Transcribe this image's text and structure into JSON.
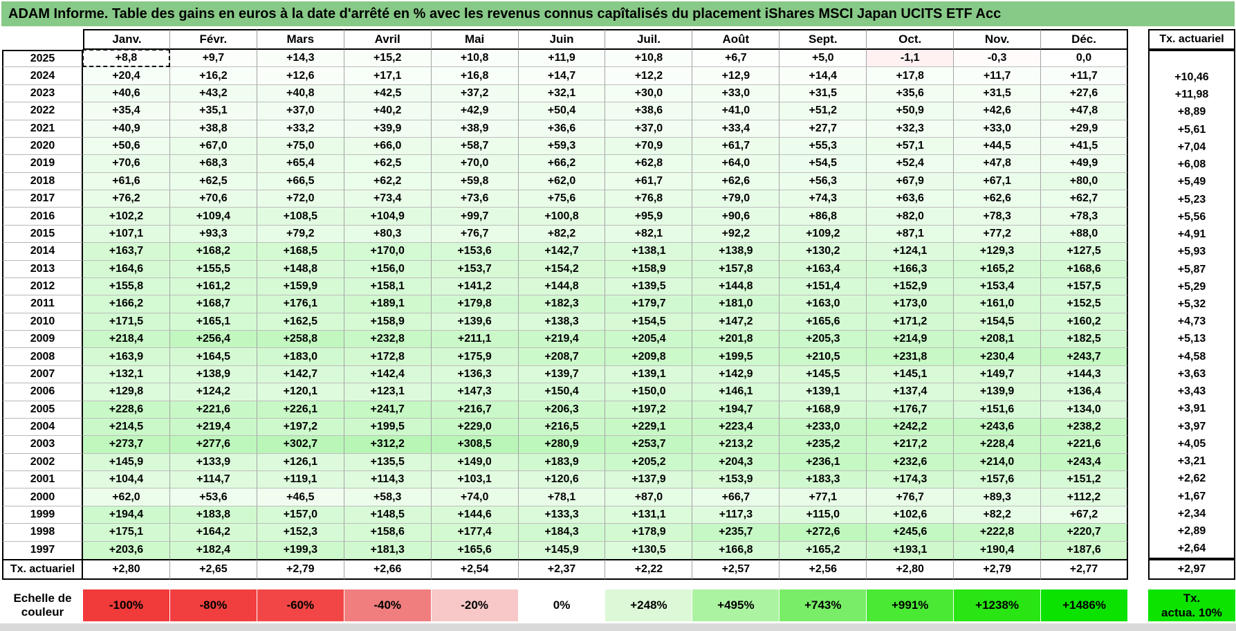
{
  "title": "ADAM Informe. Table des gains en euros à la date d'arrêté en % avec les revenus connus capîtalisés du placement iShares MSCI Japan UCITS ETF Acc",
  "columns": [
    "Janv.",
    "Févr.",
    "Mars",
    "Avril",
    "Mai",
    "Juin",
    "Juil.",
    "Août",
    "Sept.",
    "Oct.",
    "Nov.",
    "Déc."
  ],
  "right_column_header": "Tx. actuariel",
  "rows": [
    {
      "year": "2025",
      "values": [
        "+8,8",
        "+9,7",
        "+14,3",
        "+15,2",
        "+10,8",
        "+11,9",
        "+10,8",
        "+6,7",
        "+5,0",
        "-1,1",
        "-0,3",
        "0,0"
      ],
      "tx": ""
    },
    {
      "year": "2024",
      "values": [
        "+20,4",
        "+16,2",
        "+12,6",
        "+17,1",
        "+16,8",
        "+14,7",
        "+12,2",
        "+12,9",
        "+14,4",
        "+17,8",
        "+11,7",
        "+11,7"
      ],
      "tx": "+10,46"
    },
    {
      "year": "2023",
      "values": [
        "+40,6",
        "+43,2",
        "+40,8",
        "+42,5",
        "+37,2",
        "+32,1",
        "+30,0",
        "+33,0",
        "+31,5",
        "+35,6",
        "+31,5",
        "+27,6"
      ],
      "tx": "+11,98"
    },
    {
      "year": "2022",
      "values": [
        "+35,4",
        "+35,1",
        "+37,0",
        "+40,2",
        "+42,9",
        "+50,4",
        "+38,6",
        "+41,0",
        "+51,2",
        "+50,9",
        "+42,6",
        "+47,8"
      ],
      "tx": "+8,89"
    },
    {
      "year": "2021",
      "values": [
        "+40,9",
        "+38,8",
        "+33,2",
        "+39,9",
        "+38,9",
        "+36,6",
        "+37,0",
        "+33,4",
        "+27,7",
        "+32,3",
        "+33,0",
        "+29,9"
      ],
      "tx": "+5,61"
    },
    {
      "year": "2020",
      "values": [
        "+50,6",
        "+67,0",
        "+75,0",
        "+66,0",
        "+58,7",
        "+59,3",
        "+70,9",
        "+61,7",
        "+55,3",
        "+57,1",
        "+44,5",
        "+41,5"
      ],
      "tx": "+7,04"
    },
    {
      "year": "2019",
      "values": [
        "+70,6",
        "+68,3",
        "+65,4",
        "+62,5",
        "+70,0",
        "+66,2",
        "+62,8",
        "+64,0",
        "+54,5",
        "+52,4",
        "+47,8",
        "+49,9"
      ],
      "tx": "+6,08"
    },
    {
      "year": "2018",
      "values": [
        "+61,6",
        "+62,5",
        "+66,5",
        "+62,2",
        "+59,8",
        "+62,0",
        "+61,7",
        "+62,6",
        "+56,3",
        "+67,9",
        "+67,1",
        "+80,0"
      ],
      "tx": "+5,49"
    },
    {
      "year": "2017",
      "values": [
        "+76,2",
        "+70,6",
        "+72,0",
        "+73,4",
        "+73,6",
        "+75,6",
        "+76,8",
        "+79,0",
        "+74,3",
        "+63,6",
        "+62,6",
        "+62,7"
      ],
      "tx": "+5,23"
    },
    {
      "year": "2016",
      "values": [
        "+102,2",
        "+109,4",
        "+108,5",
        "+104,9",
        "+99,7",
        "+100,8",
        "+95,9",
        "+90,6",
        "+86,8",
        "+82,0",
        "+78,3",
        "+78,3"
      ],
      "tx": "+5,56"
    },
    {
      "year": "2015",
      "values": [
        "+107,1",
        "+93,3",
        "+79,2",
        "+80,3",
        "+76,7",
        "+82,2",
        "+82,1",
        "+92,2",
        "+109,2",
        "+87,1",
        "+77,2",
        "+88,0"
      ],
      "tx": "+4,91"
    },
    {
      "year": "2014",
      "values": [
        "+163,7",
        "+168,2",
        "+168,5",
        "+170,0",
        "+153,6",
        "+142,7",
        "+138,1",
        "+138,9",
        "+130,2",
        "+124,1",
        "+129,3",
        "+127,5"
      ],
      "tx": "+5,93"
    },
    {
      "year": "2013",
      "values": [
        "+164,6",
        "+155,5",
        "+148,8",
        "+156,0",
        "+153,7",
        "+154,2",
        "+158,9",
        "+157,8",
        "+163,4",
        "+166,3",
        "+165,2",
        "+168,6"
      ],
      "tx": "+5,87"
    },
    {
      "year": "2012",
      "values": [
        "+155,8",
        "+161,2",
        "+159,9",
        "+158,1",
        "+141,2",
        "+144,8",
        "+139,5",
        "+144,8",
        "+151,4",
        "+152,9",
        "+153,4",
        "+157,5"
      ],
      "tx": "+5,29"
    },
    {
      "year": "2011",
      "values": [
        "+166,2",
        "+168,7",
        "+176,1",
        "+189,1",
        "+179,8",
        "+182,3",
        "+179,7",
        "+181,0",
        "+163,0",
        "+173,0",
        "+161,0",
        "+152,5"
      ],
      "tx": "+5,32"
    },
    {
      "year": "2010",
      "values": [
        "+171,5",
        "+165,1",
        "+162,5",
        "+158,9",
        "+139,6",
        "+138,3",
        "+154,5",
        "+147,2",
        "+165,6",
        "+171,2",
        "+154,5",
        "+160,2"
      ],
      "tx": "+4,73"
    },
    {
      "year": "2009",
      "values": [
        "+218,4",
        "+256,4",
        "+258,8",
        "+232,8",
        "+211,1",
        "+219,4",
        "+205,4",
        "+201,8",
        "+205,3",
        "+214,9",
        "+208,1",
        "+182,5"
      ],
      "tx": "+5,13"
    },
    {
      "year": "2008",
      "values": [
        "+163,9",
        "+164,5",
        "+183,0",
        "+172,8",
        "+175,9",
        "+208,7",
        "+209,8",
        "+199,5",
        "+210,5",
        "+231,8",
        "+230,4",
        "+243,7"
      ],
      "tx": "+4,58"
    },
    {
      "year": "2007",
      "values": [
        "+132,1",
        "+138,9",
        "+142,7",
        "+142,4",
        "+136,3",
        "+139,7",
        "+139,1",
        "+142,9",
        "+145,5",
        "+145,1",
        "+149,7",
        "+144,3"
      ],
      "tx": "+3,63"
    },
    {
      "year": "2006",
      "values": [
        "+129,8",
        "+124,2",
        "+120,1",
        "+123,1",
        "+147,3",
        "+150,4",
        "+150,0",
        "+146,1",
        "+139,1",
        "+137,4",
        "+139,9",
        "+136,4"
      ],
      "tx": "+3,43"
    },
    {
      "year": "2005",
      "values": [
        "+228,6",
        "+221,6",
        "+226,1",
        "+241,7",
        "+216,7",
        "+206,3",
        "+197,2",
        "+194,7",
        "+168,9",
        "+176,7",
        "+151,6",
        "+134,0"
      ],
      "tx": "+3,91"
    },
    {
      "year": "2004",
      "values": [
        "+214,5",
        "+219,4",
        "+197,2",
        "+199,5",
        "+229,0",
        "+216,5",
        "+229,1",
        "+223,4",
        "+233,0",
        "+242,2",
        "+243,6",
        "+238,2"
      ],
      "tx": "+3,97"
    },
    {
      "year": "2003",
      "values": [
        "+273,7",
        "+277,6",
        "+302,7",
        "+312,2",
        "+308,5",
        "+280,9",
        "+253,7",
        "+213,2",
        "+235,2",
        "+217,2",
        "+228,4",
        "+221,6"
      ],
      "tx": "+4,05"
    },
    {
      "year": "2002",
      "values": [
        "+145,9",
        "+133,9",
        "+126,1",
        "+135,5",
        "+149,0",
        "+183,9",
        "+205,2",
        "+204,3",
        "+236,1",
        "+232,6",
        "+214,0",
        "+243,4"
      ],
      "tx": "+3,21"
    },
    {
      "year": "2001",
      "values": [
        "+104,4",
        "+114,7",
        "+119,1",
        "+114,3",
        "+103,1",
        "+120,6",
        "+137,9",
        "+153,9",
        "+183,3",
        "+174,3",
        "+157,6",
        "+151,2"
      ],
      "tx": "+2,62"
    },
    {
      "year": "2000",
      "values": [
        "+62,0",
        "+53,6",
        "+46,5",
        "+58,3",
        "+74,0",
        "+78,1",
        "+87,0",
        "+66,7",
        "+77,1",
        "+76,7",
        "+89,3",
        "+112,2"
      ],
      "tx": "+1,67"
    },
    {
      "year": "1999",
      "values": [
        "+194,4",
        "+183,8",
        "+157,0",
        "+148,5",
        "+144,6",
        "+133,3",
        "+131,1",
        "+117,3",
        "+115,0",
        "+102,6",
        "+82,2",
        "+67,2"
      ],
      "tx": "+2,34"
    },
    {
      "year": "1998",
      "values": [
        "+175,1",
        "+164,2",
        "+152,3",
        "+158,6",
        "+177,4",
        "+184,3",
        "+178,9",
        "+235,7",
        "+272,6",
        "+245,6",
        "+222,8",
        "+220,7"
      ],
      "tx": "+2,89"
    },
    {
      "year": "1997",
      "values": [
        "+203,6",
        "+182,4",
        "+199,3",
        "+181,3",
        "+165,6",
        "+145,9",
        "+130,5",
        "+166,8",
        "+165,2",
        "+193,1",
        "+190,4",
        "+187,6"
      ],
      "tx": "+2,64"
    }
  ],
  "footer": {
    "label": "Tx. actuariel",
    "values": [
      "+2,80",
      "+2,65",
      "+2,79",
      "+2,66",
      "+2,54",
      "+2,37",
      "+2,22",
      "+2,57",
      "+2,56",
      "+2,80",
      "+2,79",
      "+2,77"
    ],
    "tx": "+2,97"
  },
  "color_scale": {
    "label_line1": "Echelle de",
    "label_line2": "couleur",
    "stops": [
      {
        "label": "-100%",
        "color": "#F13A3A"
      },
      {
        "label": "-80%",
        "color": "#F13F3F"
      },
      {
        "label": "-60%",
        "color": "#F24646"
      },
      {
        "label": "-40%",
        "color": "#F07E7E"
      },
      {
        "label": "-20%",
        "color": "#F8C8C8"
      },
      {
        "label": "0%",
        "color": "#FFFFFF"
      },
      {
        "label": "+248%",
        "color": "#DCF8D6"
      },
      {
        "label": "+495%",
        "color": "#ACF3A1"
      },
      {
        "label": "+743%",
        "color": "#79ED67"
      },
      {
        "label": "+991%",
        "color": "#49E934"
      },
      {
        "label": "+1238%",
        "color": "#28E513"
      },
      {
        "label": "+1486%",
        "color": "#0CE200"
      }
    ]
  },
  "tx_box": {
    "line1": "Tx.",
    "line2": "actua. 10%",
    "color": "#0CE400"
  },
  "colors": {
    "title_bg": "#87C987",
    "scale_max_value": 1486
  },
  "selected_cell": {
    "year": "2025",
    "month": "Janv.",
    "month_index": 0
  }
}
